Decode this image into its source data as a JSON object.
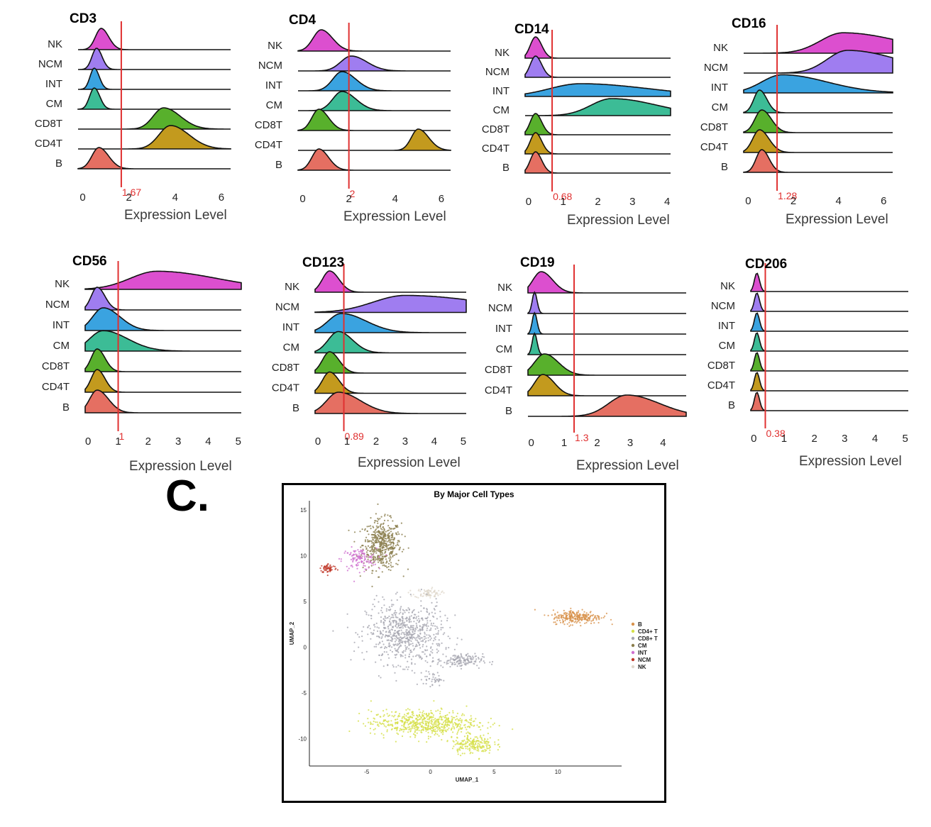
{
  "colors": {
    "NK": "#dc4fcf",
    "NCM": "#9f7df0",
    "INT": "#3aa3e0",
    "CM": "#3cbc96",
    "CD8T": "#58b02c",
    "CD4T": "#c39a1e",
    "B": "#e56f62",
    "threshold": "#e03030"
  },
  "chart_data": [
    {
      "type": "ridgeline",
      "title": "CD3",
      "xlabel": "Expression Level",
      "categories": [
        "NK",
        "NCM",
        "INT",
        "CM",
        "CD8T",
        "CD4T",
        "B"
      ],
      "xticks": [
        0,
        2,
        4,
        6
      ],
      "xlim": [
        -0.2,
        6.4
      ],
      "threshold": 1.67,
      "threshold_label": "1.67",
      "peaks": {
        "NK": [
          0.8,
          0.25,
          1,
          0.3
        ],
        "NCM": [
          0.6,
          0.2,
          1,
          0.2
        ],
        "INT": [
          0.5,
          0.18,
          1,
          0.2
        ],
        "CM": [
          0.5,
          0.2,
          1,
          0.2
        ],
        "CD8T": [
          3.5,
          0.45,
          1,
          0.6
        ],
        "CD4T": [
          3.8,
          0.5,
          1.1,
          0.6
        ],
        "B": [
          0.7,
          0.3,
          1,
          0.4
        ]
      }
    },
    {
      "type": "ridgeline",
      "title": "CD4",
      "xlabel": "Expression Level",
      "categories": [
        "NK",
        "NCM",
        "INT",
        "CM",
        "CD8T",
        "CD4T",
        "B"
      ],
      "xticks": [
        0,
        2,
        4,
        6
      ],
      "xlim": [
        -0.2,
        6.4
      ],
      "threshold": 2,
      "threshold_label": "2",
      "peaks": {
        "NK": [
          0.8,
          0.35,
          1,
          0.4
        ],
        "NCM": [
          2.1,
          0.45,
          0.7,
          0.5
        ],
        "INT": [
          1.7,
          0.4,
          0.9,
          0.5
        ],
        "CM": [
          1.7,
          0.4,
          0.9,
          0.5
        ],
        "CD8T": [
          0.7,
          0.3,
          1,
          0.4
        ],
        "CD4T": [
          5.0,
          0.3,
          1,
          0.5
        ],
        "B": [
          0.7,
          0.3,
          1,
          0.4
        ]
      }
    },
    {
      "type": "ridgeline",
      "title": "CD14",
      "xlabel": "Expression Level",
      "categories": [
        "NK",
        "NCM",
        "INT",
        "CM",
        "CD8T",
        "CD4T",
        "B"
      ],
      "xticks": [
        0,
        1,
        2,
        3,
        4
      ],
      "xlim": [
        -0.1,
        4.1
      ],
      "threshold": 0.68,
      "threshold_label": "0.68",
      "peaks": {
        "NK": [
          0.2,
          0.15,
          1,
          0.2
        ],
        "NCM": [
          0.2,
          0.15,
          1,
          0.2
        ],
        "INT": [
          1.5,
          0.9,
          0.6,
          1.2
        ],
        "CM": [
          2.4,
          0.6,
          0.8,
          1.2
        ],
        "CD8T": [
          0.2,
          0.15,
          1,
          0.2
        ],
        "CD4T": [
          0.2,
          0.15,
          1,
          0.2
        ],
        "B": [
          0.2,
          0.15,
          1,
          0.2
        ]
      }
    },
    {
      "type": "ridgeline",
      "title": "CD16",
      "xlabel": "Expression Level",
      "categories": [
        "NK",
        "NCM",
        "INT",
        "CM",
        "CD8T",
        "CD4T",
        "B"
      ],
      "xticks": [
        0,
        2,
        4,
        6
      ],
      "xlim": [
        -0.2,
        6.4
      ],
      "threshold": 1.28,
      "threshold_label": "1.28",
      "peaks": {
        "NK": [
          4.2,
          1.0,
          0.9,
          1.5
        ],
        "NCM": [
          4.4,
          0.9,
          1.0,
          1.5
        ],
        "INT": [
          1.5,
          0.9,
          0.8,
          1.2
        ],
        "CM": [
          0.5,
          0.25,
          1,
          0.3
        ],
        "CD8T": [
          0.6,
          0.3,
          1,
          0.4
        ],
        "CD4T": [
          0.5,
          0.3,
          1,
          0.4
        ],
        "B": [
          0.6,
          0.25,
          1,
          0.3
        ]
      }
    },
    {
      "type": "ridgeline",
      "title": "CD56",
      "xlabel": "Expression Level",
      "categories": [
        "NK",
        "NCM",
        "INT",
        "CM",
        "CD8T",
        "CD4T",
        "B"
      ],
      "xticks": [
        0,
        1,
        2,
        3,
        4,
        5
      ],
      "xlim": [
        -0.1,
        5.1
      ],
      "threshold": 1,
      "threshold_label": "1",
      "peaks": {
        "NK": [
          2.3,
          0.9,
          0.8,
          1.2
        ],
        "NCM": [
          0.3,
          0.2,
          1,
          0.3
        ],
        "INT": [
          0.5,
          0.35,
          1,
          0.6
        ],
        "CM": [
          0.5,
          0.45,
          0.9,
          0.8
        ],
        "CD8T": [
          0.3,
          0.2,
          1,
          0.3
        ],
        "CD4T": [
          0.3,
          0.2,
          1,
          0.3
        ],
        "B": [
          0.3,
          0.25,
          1,
          0.5
        ]
      }
    },
    {
      "type": "ridgeline",
      "title": "CD123",
      "xlabel": "Expression Level",
      "categories": [
        "NK",
        "NCM",
        "INT",
        "CM",
        "CD8T",
        "CD4T",
        "B"
      ],
      "xticks": [
        0,
        1,
        2,
        3,
        4,
        5
      ],
      "xlim": [
        -0.1,
        5.1
      ],
      "threshold": 0.89,
      "threshold_label": "0.89",
      "peaks": {
        "NK": [
          0.4,
          0.25,
          1,
          0.3
        ],
        "NCM": [
          3.0,
          1.1,
          0.8,
          1.5
        ],
        "INT": [
          0.8,
          0.45,
          0.9,
          0.9
        ],
        "CM": [
          0.7,
          0.35,
          1,
          0.4
        ],
        "CD8T": [
          0.4,
          0.25,
          1,
          0.3
        ],
        "CD4T": [
          0.4,
          0.25,
          1,
          0.3
        ],
        "B": [
          0.7,
          0.4,
          1,
          0.9
        ]
      }
    },
    {
      "type": "ridgeline",
      "title": "CD19",
      "xlabel": "Expression Level",
      "categories": [
        "NK",
        "NCM",
        "INT",
        "CM",
        "CD8T",
        "CD4T",
        "B"
      ],
      "xticks": [
        0,
        1,
        2,
        3,
        4
      ],
      "xlim": [
        -0.1,
        4.7
      ],
      "threshold": 1.3,
      "threshold_label": "1.3",
      "peaks": {
        "NK": [
          0.3,
          0.25,
          1,
          0.4
        ],
        "NCM": [
          0.1,
          0.07,
          1,
          0.1
        ],
        "INT": [
          0.1,
          0.07,
          1,
          0.1
        ],
        "CM": [
          0.1,
          0.07,
          1,
          0.1
        ],
        "CD8T": [
          0.4,
          0.3,
          1,
          0.4
        ],
        "CD4T": [
          0.35,
          0.25,
          1,
          0.4
        ],
        "B": [
          2.9,
          0.55,
          1,
          0.8
        ]
      }
    },
    {
      "type": "ridgeline",
      "title": "CD206",
      "xlabel": "Expression Level",
      "categories": [
        "NK",
        "NCM",
        "INT",
        "CM",
        "CD8T",
        "CD4T",
        "B"
      ],
      "xticks": [
        0,
        1,
        2,
        3,
        4,
        5
      ],
      "xlim": [
        -0.1,
        5.1
      ],
      "threshold": 0.38,
      "threshold_label": "0.38",
      "peaks": {
        "NK": [
          0.1,
          0.08,
          1,
          0.1
        ],
        "NCM": [
          0.1,
          0.08,
          1,
          0.1
        ],
        "INT": [
          0.1,
          0.08,
          1,
          0.1
        ],
        "CM": [
          0.1,
          0.08,
          1,
          0.1
        ],
        "CD8T": [
          0.1,
          0.08,
          1,
          0.1
        ],
        "CD4T": [
          0.1,
          0.08,
          1,
          0.1
        ],
        "B": [
          0.1,
          0.08,
          1,
          0.1
        ]
      }
    },
    {
      "type": "scatter",
      "title": "By Major Cell Types",
      "xlabel": "UMAP_1",
      "ylabel": "UMAP_2",
      "xticks": [
        -5,
        0,
        5,
        10
      ],
      "yticks": [
        15,
        10,
        5,
        0,
        -5,
        -10
      ],
      "xlim": [
        -9.5,
        15
      ],
      "ylim": [
        -13,
        16
      ],
      "legend": [
        "B",
        "CD4+ T",
        "CD8+ T",
        "CM",
        "INT",
        "NCM",
        "NK"
      ],
      "legend_colors": [
        "#d8924c",
        "#d6e04a",
        "#a6a6b0",
        "#8a7d4c",
        "#d070d0",
        "#c0392b",
        "#e0d8cc"
      ],
      "clusters": [
        {
          "label": "CM",
          "color": "#8a7d4c",
          "cx": -3.8,
          "cy": 11.2,
          "sx": 1.0,
          "sy": 1.8,
          "n": 500
        },
        {
          "label": "INT",
          "color": "#d070d0",
          "cx": -5.6,
          "cy": 9.6,
          "sx": 0.9,
          "sy": 0.8,
          "n": 120
        },
        {
          "label": "NCM",
          "color": "#c0392b",
          "cx": -8.0,
          "cy": 8.6,
          "sx": 0.45,
          "sy": 0.35,
          "n": 60
        },
        {
          "label": "NK",
          "color": "#e0d8cc",
          "cx": -0.2,
          "cy": 5.9,
          "sx": 0.7,
          "sy": 0.35,
          "n": 80
        },
        {
          "label": "CD8+ T",
          "color": "#a6a6b0",
          "cx": -2.0,
          "cy": 1.5,
          "sx": 2.0,
          "sy": 2.2,
          "n": 700
        },
        {
          "label": "CD8+ T",
          "color": "#a6a6b0",
          "cx": 2.3,
          "cy": -1.5,
          "sx": 1.2,
          "sy": 0.5,
          "n": 150
        },
        {
          "label": "CD8+ T",
          "color": "#a6a6b0",
          "cx": 0.2,
          "cy": -3.5,
          "sx": 0.5,
          "sy": 0.5,
          "n": 40
        },
        {
          "label": "B",
          "color": "#d8924c",
          "cx": 11.5,
          "cy": 3.3,
          "sx": 1.3,
          "sy": 0.5,
          "n": 250
        },
        {
          "label": "CD4+ T",
          "color": "#d6e04a",
          "cx": -0.5,
          "cy": -8.3,
          "sx": 2.8,
          "sy": 0.9,
          "n": 600
        },
        {
          "label": "CD4+ T",
          "color": "#d6e04a",
          "cx": 3.3,
          "cy": -10.6,
          "sx": 1.1,
          "sy": 0.7,
          "n": 200
        }
      ]
    }
  ],
  "section_letter": "C.",
  "umap_title": "By Major Cell Types"
}
